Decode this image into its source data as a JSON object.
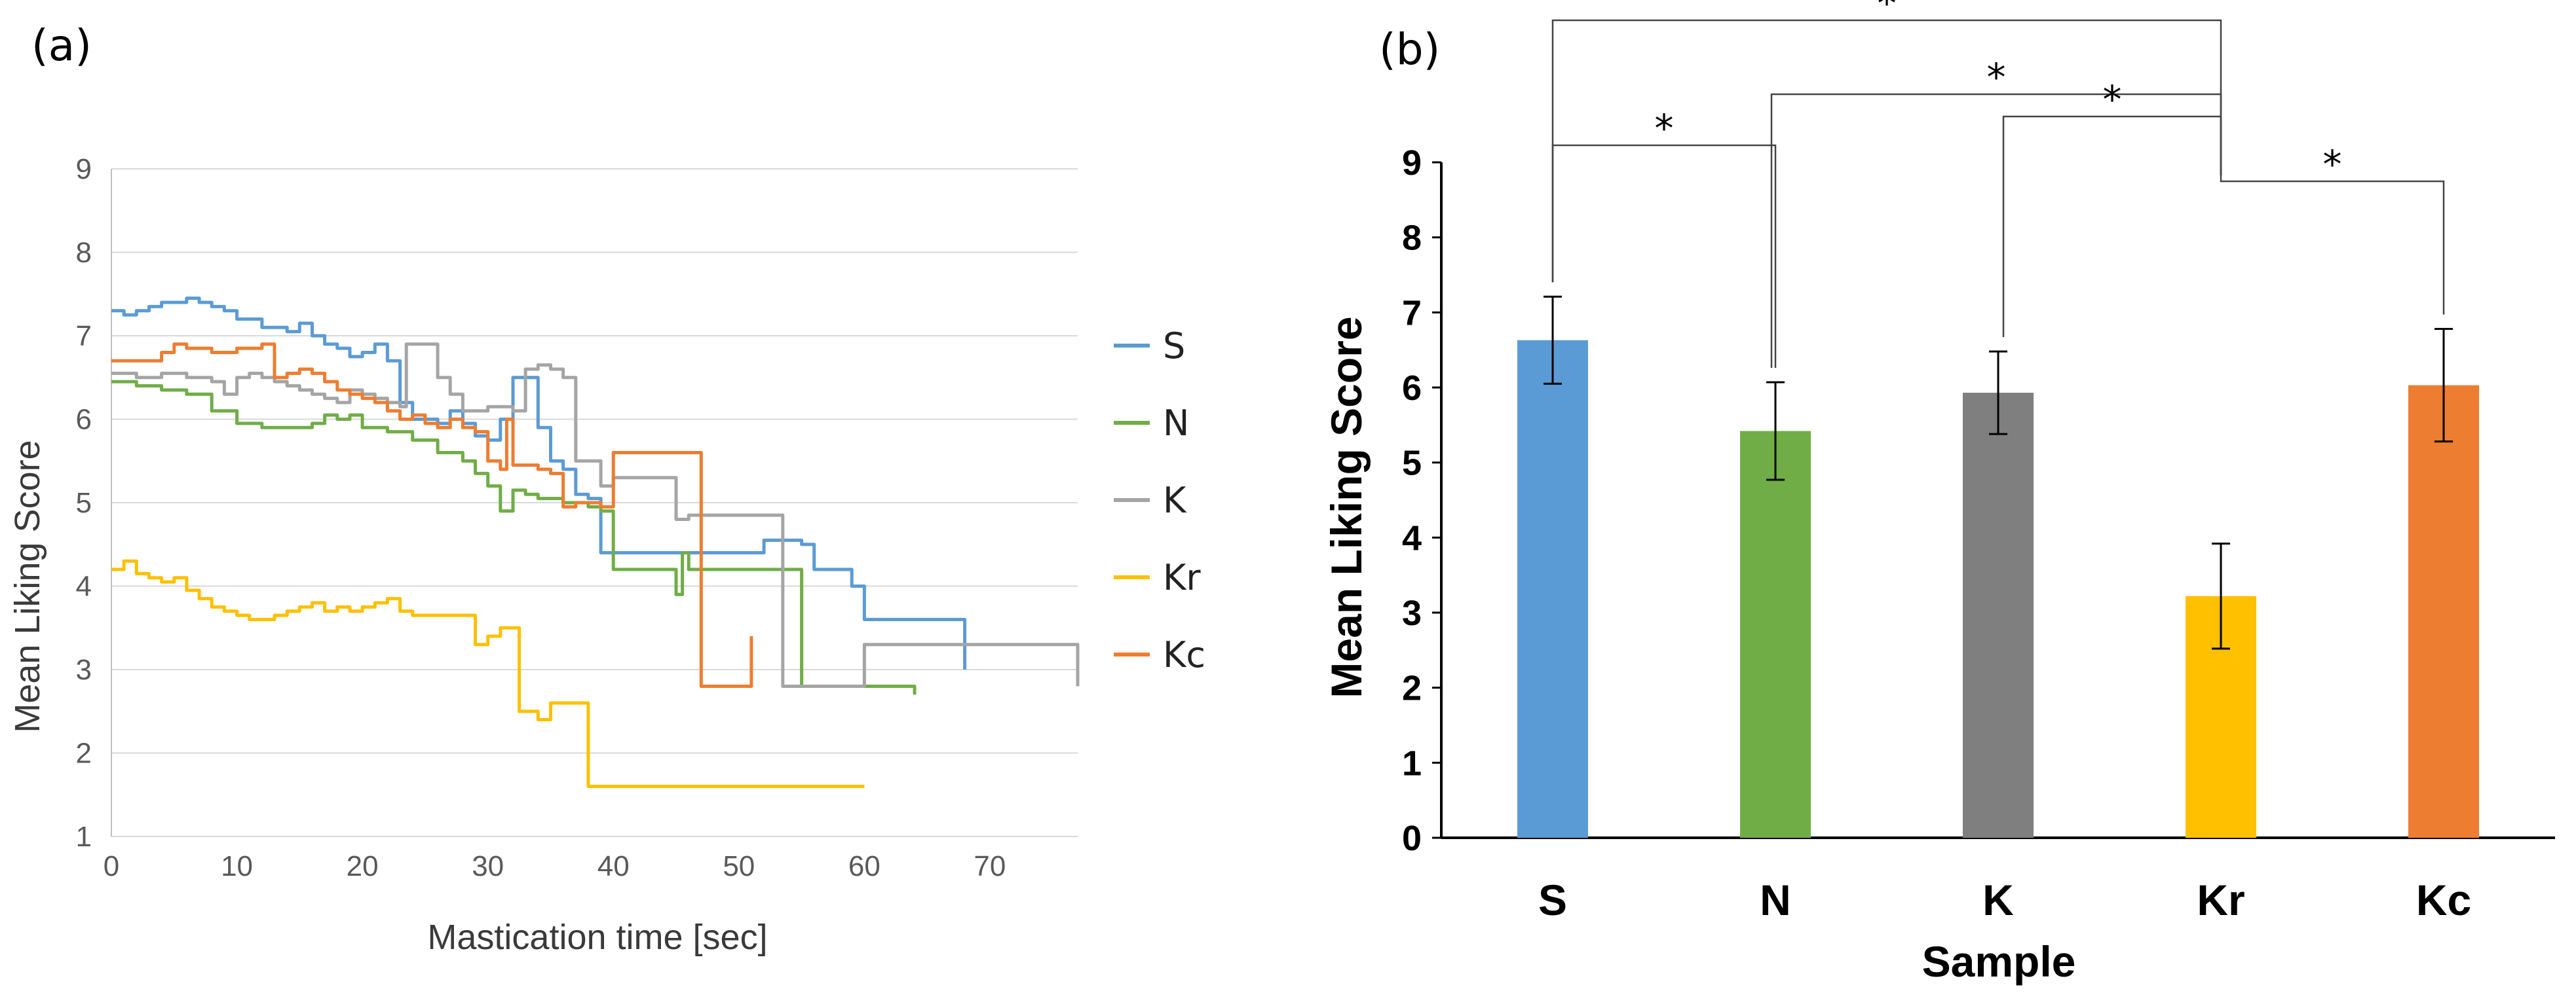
{
  "panel_a": {
    "label": "(a)"
  },
  "panel_b": {
    "label": "(b)"
  },
  "chart_data": [
    {
      "type": "line",
      "title": "",
      "xlabel": "Mastication time [sec]",
      "ylabel": "Mean Liking Score",
      "xlim": [
        0,
        77
      ],
      "ylim": [
        1,
        9
      ],
      "xticks": [
        0,
        10,
        20,
        30,
        40,
        50,
        60,
        70
      ],
      "yticks": [
        1,
        2,
        3,
        4,
        5,
        6,
        7,
        8,
        9
      ],
      "grid": true,
      "legend_position": "right",
      "series": [
        {
          "name": "S",
          "color": "#5B9BD5",
          "points": [
            [
              0,
              7.3
            ],
            [
              1,
              7.25
            ],
            [
              2,
              7.3
            ],
            [
              3,
              7.35
            ],
            [
              4,
              7.4
            ],
            [
              5,
              7.4
            ],
            [
              6,
              7.45
            ],
            [
              7,
              7.4
            ],
            [
              8,
              7.35
            ],
            [
              9,
              7.3
            ],
            [
              10,
              7.2
            ],
            [
              11,
              7.2
            ],
            [
              12,
              7.1
            ],
            [
              13,
              7.1
            ],
            [
              14,
              7.05
            ],
            [
              15,
              7.15
            ],
            [
              16,
              7.0
            ],
            [
              17,
              6.9
            ],
            [
              18,
              6.85
            ],
            [
              19,
              6.75
            ],
            [
              20,
              6.8
            ],
            [
              21,
              6.9
            ],
            [
              22,
              6.7
            ],
            [
              23,
              6.2
            ],
            [
              24,
              6.0
            ],
            [
              25,
              6.0
            ],
            [
              26,
              5.95
            ],
            [
              27,
              6.1
            ],
            [
              28,
              5.95
            ],
            [
              29,
              5.8
            ],
            [
              30,
              5.75
            ],
            [
              31,
              6.0
            ],
            [
              32,
              6.5
            ],
            [
              33,
              6.5
            ],
            [
              34,
              5.9
            ],
            [
              35,
              5.5
            ],
            [
              36,
              5.4
            ],
            [
              37,
              5.1
            ],
            [
              38,
              5.05
            ],
            [
              39,
              4.4
            ],
            [
              40,
              4.4
            ],
            [
              45,
              4.4
            ],
            [
              50,
              4.4
            ],
            [
              52,
              4.55
            ],
            [
              55,
              4.5
            ],
            [
              56,
              4.2
            ],
            [
              57,
              4.2
            ],
            [
              58,
              4.2
            ],
            [
              59,
              4.0
            ],
            [
              60,
              3.6
            ],
            [
              62,
              3.6
            ],
            [
              65,
              3.6
            ],
            [
              67,
              3.6
            ],
            [
              68,
              3.0
            ]
          ]
        },
        {
          "name": "N",
          "color": "#70AD47",
          "points": [
            [
              0,
              6.45
            ],
            [
              2,
              6.4
            ],
            [
              4,
              6.35
            ],
            [
              6,
              6.3
            ],
            [
              8,
              6.1
            ],
            [
              10,
              5.95
            ],
            [
              12,
              5.9
            ],
            [
              14,
              5.9
            ],
            [
              16,
              5.95
            ],
            [
              17,
              6.05
            ],
            [
              18,
              6.0
            ],
            [
              19,
              6.05
            ],
            [
              20,
              5.9
            ],
            [
              22,
              5.85
            ],
            [
              24,
              5.75
            ],
            [
              26,
              5.6
            ],
            [
              28,
              5.5
            ],
            [
              29,
              5.35
            ],
            [
              30,
              5.2
            ],
            [
              31,
              4.9
            ],
            [
              32,
              5.15
            ],
            [
              33,
              5.1
            ],
            [
              34,
              5.05
            ],
            [
              35,
              5.05
            ],
            [
              36,
              5.0
            ],
            [
              37,
              5.0
            ],
            [
              38,
              4.95
            ],
            [
              39,
              4.9
            ],
            [
              40,
              4.2
            ],
            [
              42,
              4.2
            ],
            [
              44,
              4.2
            ],
            [
              45,
              3.9
            ],
            [
              45.5,
              4.4
            ],
            [
              46,
              4.2
            ],
            [
              50,
              4.2
            ],
            [
              54,
              4.2
            ],
            [
              55,
              2.8
            ],
            [
              58,
              2.8
            ],
            [
              60,
              2.8
            ],
            [
              62,
              2.8
            ],
            [
              64,
              2.7
            ]
          ]
        },
        {
          "name": "K",
          "color": "#A5A5A5",
          "points": [
            [
              0,
              6.55
            ],
            [
              2,
              6.5
            ],
            [
              4,
              6.55
            ],
            [
              6,
              6.5
            ],
            [
              8,
              6.45
            ],
            [
              9,
              6.3
            ],
            [
              10,
              6.5
            ],
            [
              11,
              6.55
            ],
            [
              12,
              6.5
            ],
            [
              13,
              6.45
            ],
            [
              14,
              6.4
            ],
            [
              15,
              6.35
            ],
            [
              16,
              6.3
            ],
            [
              17,
              6.25
            ],
            [
              18,
              6.2
            ],
            [
              19,
              6.35
            ],
            [
              20,
              6.3
            ],
            [
              21,
              6.25
            ],
            [
              22,
              6.2
            ],
            [
              23,
              6.15
            ],
            [
              23.5,
              6.9
            ],
            [
              24,
              6.9
            ],
            [
              25,
              6.9
            ],
            [
              26,
              6.5
            ],
            [
              27,
              6.3
            ],
            [
              28,
              6.1
            ],
            [
              29,
              6.1
            ],
            [
              30,
              6.15
            ],
            [
              31,
              6.15
            ],
            [
              32,
              6.1
            ],
            [
              33,
              6.6
            ],
            [
              34,
              6.65
            ],
            [
              35,
              6.6
            ],
            [
              36,
              6.5
            ],
            [
              37,
              5.5
            ],
            [
              38,
              5.5
            ],
            [
              39,
              5.2
            ],
            [
              40,
              5.3
            ],
            [
              42,
              5.3
            ],
            [
              44,
              5.3
            ],
            [
              45,
              4.8
            ],
            [
              46,
              4.85
            ],
            [
              48,
              4.85
            ],
            [
              50,
              4.85
            ],
            [
              52,
              4.85
            ],
            [
              53,
              4.85
            ],
            [
              53.5,
              2.8
            ],
            [
              55,
              2.8
            ],
            [
              57,
              2.8
            ],
            [
              59,
              2.8
            ],
            [
              60,
              3.3
            ],
            [
              62,
              3.3
            ],
            [
              64,
              3.3
            ],
            [
              66,
              3.3
            ],
            [
              68,
              3.3
            ],
            [
              70,
              3.3
            ],
            [
              72,
              3.3
            ],
            [
              74,
              3.3
            ],
            [
              76,
              3.3
            ],
            [
              77,
              2.8
            ]
          ]
        },
        {
          "name": "Kr",
          "color": "#FFC000",
          "points": [
            [
              0,
              4.2
            ],
            [
              1,
              4.3
            ],
            [
              2,
              4.15
            ],
            [
              3,
              4.1
            ],
            [
              4,
              4.05
            ],
            [
              5,
              4.1
            ],
            [
              6,
              3.95
            ],
            [
              7,
              3.85
            ],
            [
              8,
              3.75
            ],
            [
              9,
              3.7
            ],
            [
              10,
              3.65
            ],
            [
              11,
              3.6
            ],
            [
              12,
              3.6
            ],
            [
              13,
              3.65
            ],
            [
              14,
              3.7
            ],
            [
              15,
              3.75
            ],
            [
              16,
              3.8
            ],
            [
              17,
              3.7
            ],
            [
              18,
              3.75
            ],
            [
              19,
              3.7
            ],
            [
              20,
              3.75
            ],
            [
              21,
              3.8
            ],
            [
              22,
              3.85
            ],
            [
              23,
              3.7
            ],
            [
              24,
              3.65
            ],
            [
              25,
              3.65
            ],
            [
              26,
              3.65
            ],
            [
              27,
              3.65
            ],
            [
              28,
              3.65
            ],
            [
              29,
              3.3
            ],
            [
              30,
              3.4
            ],
            [
              31,
              3.5
            ],
            [
              32,
              3.5
            ],
            [
              32.5,
              2.5
            ],
            [
              33,
              2.5
            ],
            [
              34,
              2.4
            ],
            [
              35,
              2.6
            ],
            [
              36,
              2.6
            ],
            [
              37,
              2.6
            ],
            [
              38,
              1.6
            ],
            [
              40,
              1.6
            ],
            [
              45,
              1.6
            ],
            [
              50,
              1.6
            ],
            [
              55,
              1.6
            ],
            [
              60,
              1.6
            ]
          ]
        },
        {
          "name": "Kc",
          "color": "#ED7D31",
          "points": [
            [
              0,
              6.7
            ],
            [
              2,
              6.7
            ],
            [
              4,
              6.8
            ],
            [
              5,
              6.9
            ],
            [
              6,
              6.85
            ],
            [
              8,
              6.8
            ],
            [
              10,
              6.85
            ],
            [
              12,
              6.9
            ],
            [
              13,
              6.5
            ],
            [
              14,
              6.55
            ],
            [
              15,
              6.6
            ],
            [
              16,
              6.55
            ],
            [
              17,
              6.45
            ],
            [
              18,
              6.35
            ],
            [
              19,
              6.3
            ],
            [
              20,
              6.25
            ],
            [
              21,
              6.2
            ],
            [
              22,
              6.1
            ],
            [
              23,
              6.0
            ],
            [
              24,
              6.05
            ],
            [
              25,
              5.95
            ],
            [
              26,
              5.9
            ],
            [
              27,
              6.0
            ],
            [
              28,
              5.9
            ],
            [
              29,
              5.85
            ],
            [
              30,
              5.5
            ],
            [
              31,
              5.4
            ],
            [
              31.5,
              6.0
            ],
            [
              32,
              5.45
            ],
            [
              33,
              5.45
            ],
            [
              34,
              5.4
            ],
            [
              35,
              5.35
            ],
            [
              36,
              4.95
            ],
            [
              37,
              5.0
            ],
            [
              38,
              5.0
            ],
            [
              39,
              4.95
            ],
            [
              40,
              5.6
            ],
            [
              42,
              5.6
            ],
            [
              44,
              5.6
            ],
            [
              46,
              5.6
            ],
            [
              47,
              2.8
            ],
            [
              49,
              2.8
            ],
            [
              50,
              2.8
            ],
            [
              51,
              3.4
            ]
          ]
        }
      ]
    },
    {
      "type": "bar",
      "title": "",
      "xlabel": "Sample",
      "ylabel": "Mean Liking Score",
      "categories": [
        "S",
        "N",
        "K",
        "Kr",
        "Kc"
      ],
      "values": [
        6.63,
        5.42,
        5.93,
        3.22,
        6.03
      ],
      "errors": [
        0.58,
        0.65,
        0.55,
        0.7,
        0.75
      ],
      "colors": [
        "#5B9BD5",
        "#70AD47",
        "#7F7F7F",
        "#FFC000",
        "#ED7D31"
      ],
      "ylim": [
        0,
        9
      ],
      "yticks": [
        0,
        1,
        2,
        3,
        4,
        5,
        6,
        7,
        8,
        9
      ],
      "grid": false,
      "significance": [
        {
          "from": "S",
          "to": "N",
          "label": "*"
        },
        {
          "from": "S",
          "to": "Kr",
          "label": "*"
        },
        {
          "from": "N",
          "to": "Kr",
          "label": "*"
        },
        {
          "from": "K",
          "to": "Kr",
          "label": "*"
        },
        {
          "from": "Kr",
          "to": "Kc",
          "label": "*"
        }
      ]
    }
  ]
}
